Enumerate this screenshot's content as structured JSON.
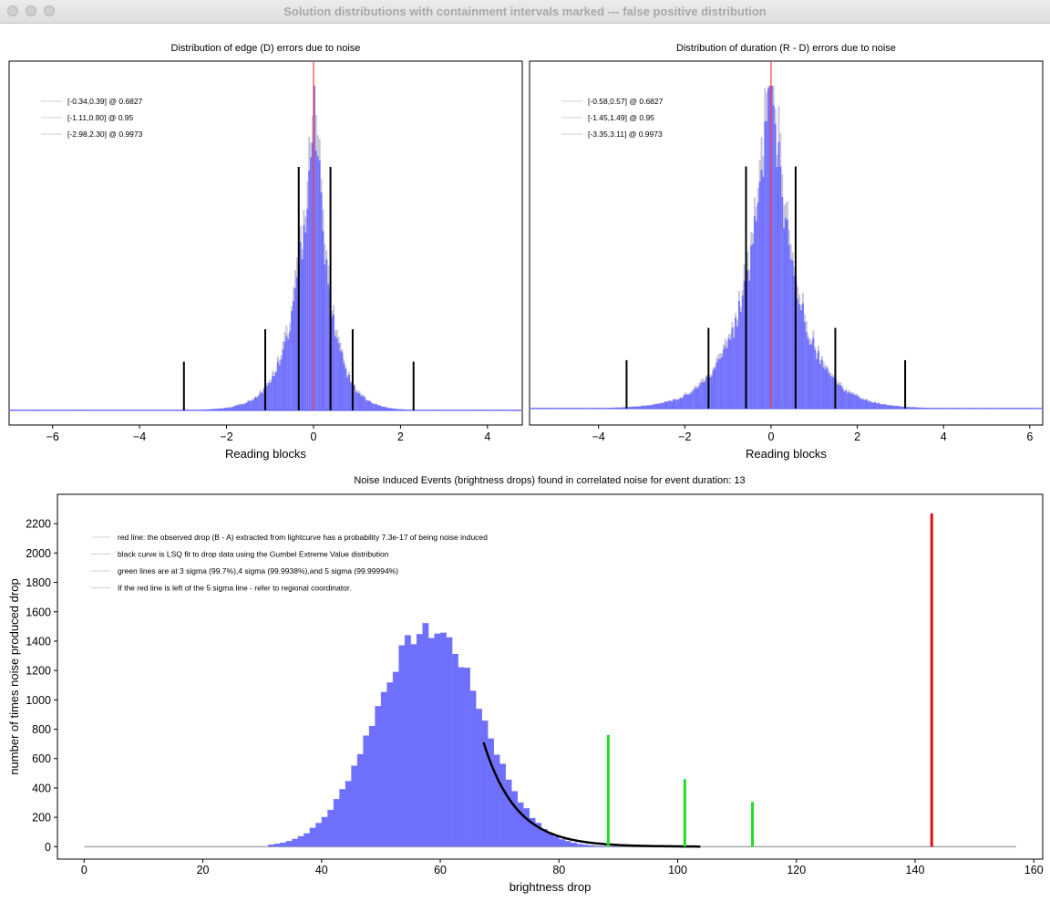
{
  "window": {
    "title": "Solution distributions with containment intervals marked --- false positive distribution"
  },
  "chart_data": [
    {
      "type": "histogram",
      "title": "Distribution of edge (D) errors due to noise",
      "xlabel": "Reading blocks",
      "xlim": [
        -7,
        4.8
      ],
      "xticks": [
        -6,
        -4,
        -2,
        0,
        2,
        4
      ],
      "distribution": {
        "center": 0.02,
        "left_width": 0.42,
        "right_width": 0.35
      },
      "center_line": {
        "x": 0,
        "color": "#ff3b3b"
      },
      "intervals": [
        {
          "low": -0.34,
          "high": 0.39,
          "confidence": 0.6827,
          "relative_height": 0.75
        },
        {
          "low": -1.11,
          "high": 0.9,
          "confidence": 0.95,
          "relative_height": 0.25
        },
        {
          "low": -2.98,
          "high": 2.3,
          "confidence": 0.9973,
          "relative_height": 0.15
        }
      ],
      "legend": [
        "[-0.34,0.39] @ 0.6827",
        "[-1.11,0.90] @ 0.95",
        "[-2.98,2.30] @ 0.9973"
      ],
      "bar_color": "#7070ff"
    },
    {
      "type": "histogram",
      "title": "Distribution of duration (R - D) errors due to noise",
      "xlabel": "Reading blocks",
      "xlim": [
        -5.6,
        6.3
      ],
      "xticks": [
        -4,
        -2,
        0,
        2,
        4,
        6
      ],
      "distribution": {
        "center": 0.0,
        "left_width": 0.62,
        "right_width": 0.6
      },
      "center_line": {
        "x": 0,
        "color": "#ff3b3b"
      },
      "intervals": [
        {
          "low": -0.58,
          "high": 0.57,
          "confidence": 0.6827,
          "relative_height": 0.75
        },
        {
          "low": -1.45,
          "high": 1.49,
          "confidence": 0.95,
          "relative_height": 0.25
        },
        {
          "low": -3.35,
          "high": 3.11,
          "confidence": 0.9973,
          "relative_height": 0.15
        }
      ],
      "legend": [
        "[-0.58,0.57] @ 0.6827",
        "[-1.45,1.49] @ 0.95",
        "[-3.35,3.11] @ 0.9973"
      ],
      "bar_color": "#7070ff"
    },
    {
      "type": "histogram",
      "title": "Noise Induced Events (brightness drops) found in correlated noise for event duration: 13",
      "xlabel": "brightness drop",
      "ylabel": "number of times noise produced drop",
      "xlim": [
        -4.5,
        161.5
      ],
      "ylim": [
        -85,
        2400
      ],
      "xticks": [
        0,
        20,
        40,
        60,
        80,
        100,
        120,
        140,
        160
      ],
      "yticks": [
        0,
        200,
        400,
        600,
        800,
        1000,
        1200,
        1400,
        1600,
        1800,
        2000,
        2200
      ],
      "histogram": {
        "mode": 57.2,
        "peak": 1470,
        "sigma": 8.5,
        "x_start": 31,
        "x_end": 104
      },
      "fit_curve": {
        "x_start": 67.3,
        "x_end": 104,
        "y_start": 710,
        "decay": 5.5,
        "color": "#000000"
      },
      "green_lines": [
        {
          "x": 88.3,
          "height": 760
        },
        {
          "x": 101.2,
          "height": 460
        },
        {
          "x": 112.6,
          "height": 305
        }
      ],
      "red_line": {
        "x": 142.8,
        "height": 2270
      },
      "x_span": [
        0,
        157
      ],
      "legend": [
        "red line: the observed drop (B - A) extracted from lightcurve has a probability 7.3e-17 of being noise induced",
        "black curve is LSQ fit to drop data using the Gumbel Extreme Value distribution",
        "green lines are at 3 sigma (99.7%),4 sigma (99.9938%),and 5 sigma (99.99994%)",
        "If the red line is left of the 5 sigma line - refer to regional coordinator."
      ],
      "bar_color": "#7070ff"
    }
  ]
}
